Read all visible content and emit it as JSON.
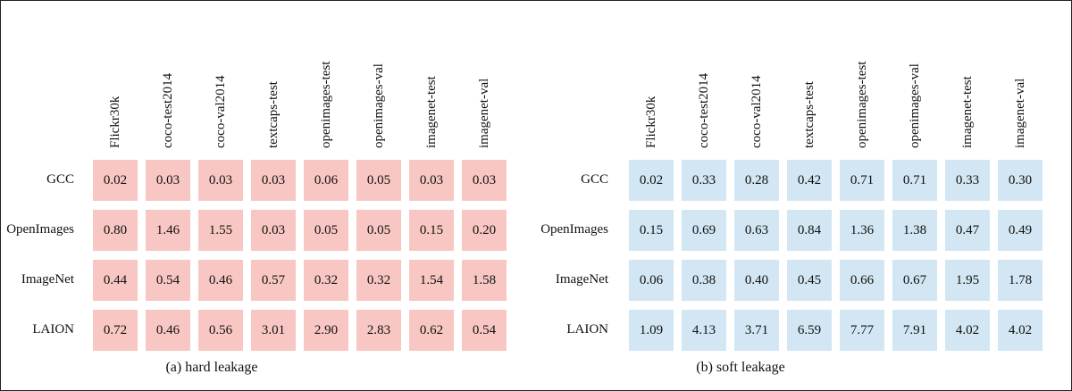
{
  "chart_data": [
    {
      "type": "heatmap",
      "title": "(a) hard leakage",
      "color": "#f8c7c3",
      "rows": [
        "GCC",
        "OpenImages",
        "ImageNet",
        "LAION"
      ],
      "columns": [
        "Flickr30k",
        "coco-test2014",
        "coco-val2014",
        "textcaps-test",
        "openimages-test",
        "openimages-val",
        "imagenet-test",
        "imagenet-val"
      ],
      "values": [
        [
          "0.02",
          "0.03",
          "0.03",
          "0.03",
          "0.06",
          "0.05",
          "0.03",
          "0.03"
        ],
        [
          "0.80",
          "1.46",
          "1.55",
          "0.03",
          "0.05",
          "0.05",
          "0.15",
          "0.20"
        ],
        [
          "0.44",
          "0.54",
          "0.46",
          "0.57",
          "0.32",
          "0.32",
          "1.54",
          "1.58"
        ],
        [
          "0.72",
          "0.46",
          "0.56",
          "3.01",
          "2.90",
          "2.83",
          "0.62",
          "0.54"
        ]
      ]
    },
    {
      "type": "heatmap",
      "title": "(b) soft leakage",
      "color": "#d2e7f3",
      "rows": [
        "GCC",
        "OpenImages",
        "ImageNet",
        "LAION"
      ],
      "columns": [
        "Flickr30k",
        "coco-test2014",
        "coco-val2014",
        "textcaps-test",
        "openimages-test",
        "openimages-val",
        "imagenet-test",
        "imagenet-val"
      ],
      "values": [
        [
          "0.02",
          "0.33",
          "0.28",
          "0.42",
          "0.71",
          "0.71",
          "0.33",
          "0.30"
        ],
        [
          "0.15",
          "0.69",
          "0.63",
          "0.84",
          "1.36",
          "1.38",
          "0.47",
          "0.49"
        ],
        [
          "0.06",
          "0.38",
          "0.40",
          "0.45",
          "0.66",
          "0.67",
          "1.95",
          "1.78"
        ],
        [
          "1.09",
          "4.13",
          "3.71",
          "6.59",
          "7.77",
          "7.91",
          "4.02",
          "4.02"
        ]
      ]
    }
  ]
}
